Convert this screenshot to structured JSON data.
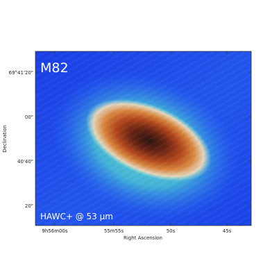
{
  "image": {
    "object_label": "M82",
    "instrument_label": "HAWC+ @ 53 μm",
    "xlabel": "Right Ascension",
    "ylabel": "Declination",
    "x_ticks": [
      "9h56m00s",
      "55m55s",
      "50s",
      "45s"
    ],
    "y_ticks": [
      "69°41'20\"",
      "00\"",
      "40'40\"",
      "20\""
    ],
    "colormap": {
      "background": "#1f4dea",
      "outer_glow": "#5fd6c4",
      "mid": "#e8c9a8",
      "inner": "#c8662a",
      "core": "#3a1a16"
    }
  }
}
